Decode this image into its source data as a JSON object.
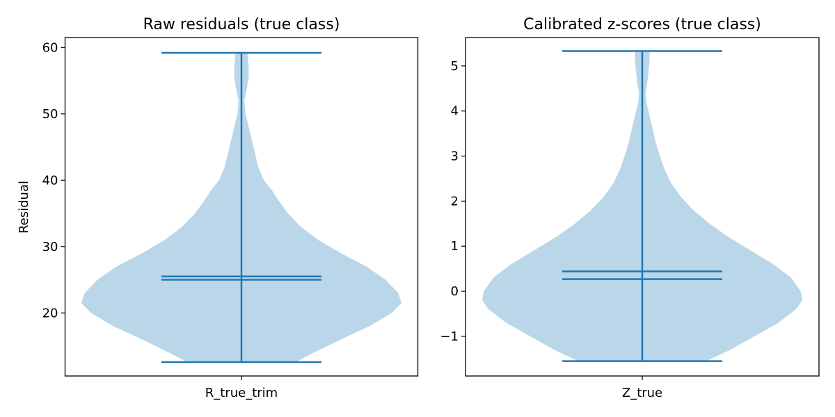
{
  "chart_data": [
    {
      "type": "violin",
      "title": "Raw residuals (true class)",
      "xlabel": "",
      "ylabel": "Residual",
      "categories": [
        "R_true_trim"
      ],
      "ylim": [
        10.5,
        61.5
      ],
      "yticks": [
        20,
        30,
        40,
        50,
        60
      ],
      "stats": {
        "min": 12.6,
        "max": 59.2,
        "mean": 25.5,
        "median": 25.0
      },
      "density": [
        [
          12.6,
          0.34
        ],
        [
          14,
          0.45
        ],
        [
          16,
          0.62
        ],
        [
          18,
          0.8
        ],
        [
          20,
          0.94
        ],
        [
          21.5,
          1.0
        ],
        [
          23,
          0.98
        ],
        [
          25,
          0.9
        ],
        [
          27,
          0.78
        ],
        [
          29,
          0.62
        ],
        [
          31,
          0.48
        ],
        [
          33,
          0.37
        ],
        [
          35,
          0.29
        ],
        [
          37,
          0.23
        ],
        [
          38.5,
          0.19
        ],
        [
          40,
          0.14
        ],
        [
          42,
          0.105
        ],
        [
          44,
          0.085
        ],
        [
          46,
          0.065
        ],
        [
          48,
          0.045
        ],
        [
          50,
          0.025
        ],
        [
          52,
          0.018
        ],
        [
          54,
          0.035
        ],
        [
          55.5,
          0.045
        ],
        [
          57,
          0.045
        ],
        [
          58.5,
          0.04
        ],
        [
          59.2,
          0.038
        ]
      ],
      "colors": {
        "body": "#bad6e9",
        "lines": "#1f77b4"
      }
    },
    {
      "type": "violin",
      "title": "Calibrated z-scores (true class)",
      "xlabel": "",
      "ylabel": "",
      "categories": [
        "Z_true"
      ],
      "ylim": [
        -1.88,
        5.63
      ],
      "yticks": [
        -1,
        0,
        1,
        2,
        3,
        4,
        5
      ],
      "ytick_labels": [
        "−1",
        "0",
        "1",
        "2",
        "3",
        "4",
        "5"
      ],
      "stats": {
        "min": -1.55,
        "max": 5.33,
        "mean": 0.44,
        "median": 0.27
      },
      "density": [
        [
          -1.55,
          0.4
        ],
        [
          -1.3,
          0.55
        ],
        [
          -1.0,
          0.7
        ],
        [
          -0.7,
          0.85
        ],
        [
          -0.4,
          0.96
        ],
        [
          -0.2,
          1.0
        ],
        [
          0.0,
          0.99
        ],
        [
          0.3,
          0.93
        ],
        [
          0.6,
          0.82
        ],
        [
          0.9,
          0.68
        ],
        [
          1.2,
          0.54
        ],
        [
          1.5,
          0.42
        ],
        [
          1.8,
          0.32
        ],
        [
          2.1,
          0.24
        ],
        [
          2.4,
          0.18
        ],
        [
          2.7,
          0.14
        ],
        [
          3.0,
          0.11
        ],
        [
          3.3,
          0.085
        ],
        [
          3.6,
          0.065
        ],
        [
          3.9,
          0.045
        ],
        [
          4.2,
          0.025
        ],
        [
          4.4,
          0.02
        ],
        [
          4.6,
          0.03
        ],
        [
          4.9,
          0.04
        ],
        [
          5.1,
          0.045
        ],
        [
          5.33,
          0.045
        ]
      ],
      "colors": {
        "body": "#bad6e9",
        "lines": "#1f77b4"
      }
    }
  ]
}
